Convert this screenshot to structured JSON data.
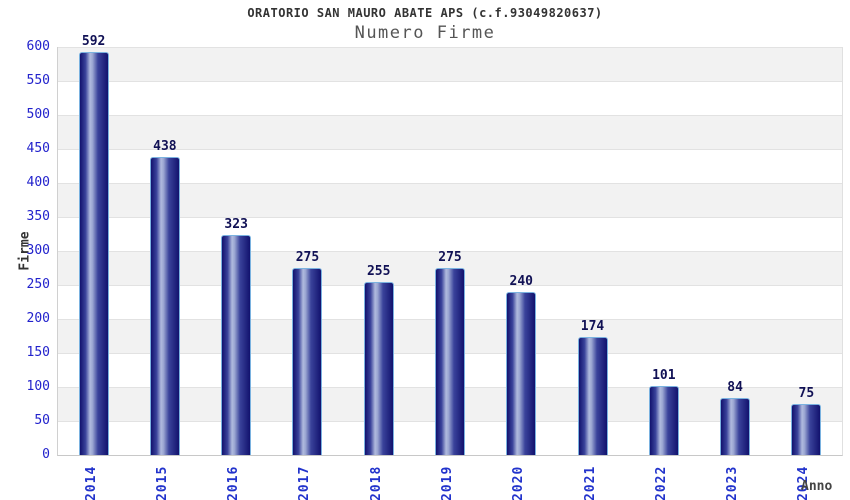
{
  "chart_data": {
    "type": "bar",
    "title": "ORATORIO SAN MAURO ABATE APS (c.f.93049820637)",
    "subtitle": "Numero Firme",
    "xlabel": "Anno",
    "ylabel": "Firme",
    "categories": [
      "2014",
      "2015",
      "2016",
      "2017",
      "2018",
      "2019",
      "2020",
      "2021",
      "2022",
      "2023",
      "2024"
    ],
    "values": [
      592,
      438,
      323,
      275,
      255,
      275,
      240,
      174,
      101,
      84,
      75
    ],
    "ylim": [
      0,
      600
    ],
    "ytick_step": 50,
    "legend": "none",
    "grid": "horizontal-bands",
    "colors": {
      "band_gray": "#f2f2f2",
      "band_white": "#ffffff",
      "gridline": "#e2e2e2",
      "baseline": "#c8c8c8",
      "bar_dark": "#12126e",
      "bar_mid": "#3a439b",
      "bar_light": "#b0bade",
      "bar_border": "#7ab2e0",
      "value_label": "#111155",
      "tick_label": "#2222cc",
      "title_color": "#333333",
      "subtitle_color": "#555555",
      "axis_title_color": "#333333"
    }
  }
}
